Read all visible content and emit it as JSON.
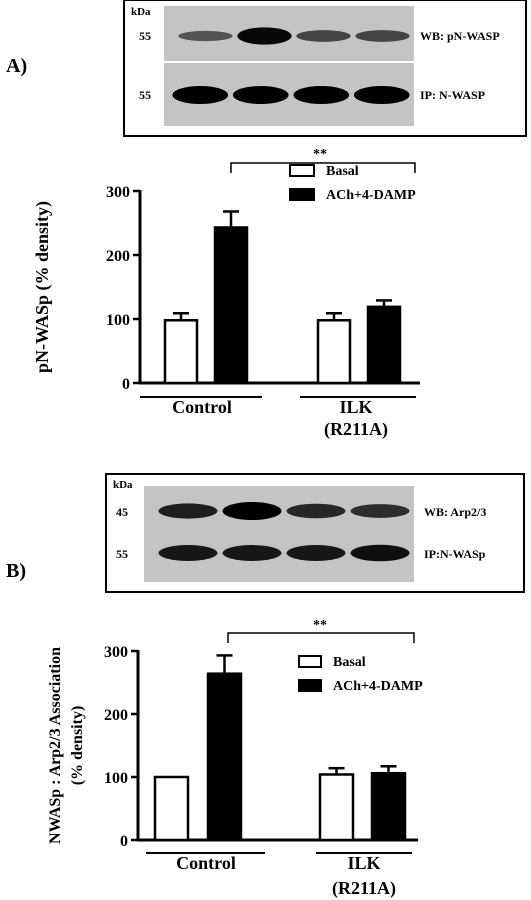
{
  "panels": [
    {
      "panel_label": "A)",
      "blot": {
        "unit_label": "kDa",
        "rows": [
          {
            "mw": "55",
            "label": "WB: pN-WASP",
            "intensities": [
              0.45,
              0.95,
              0.55,
              0.55
            ]
          },
          {
            "mw": "55",
            "label": "IP: N-WASP",
            "intensities": [
              1.0,
              1.0,
              1.0,
              1.0
            ]
          }
        ]
      },
      "significance": "**"
    },
    {
      "panel_label": "B)",
      "blot": {
        "unit_label": "kDa",
        "rows": [
          {
            "mw": "45",
            "label": "WB: Arp2/3",
            "intensities": [
              0.8,
              1.0,
              0.75,
              0.7
            ]
          },
          {
            "mw": "55",
            "label": "IP:N-WASp",
            "intensities": [
              0.85,
              0.85,
              0.85,
              0.9
            ]
          }
        ]
      },
      "significance": "**"
    }
  ],
  "chart_data": [
    {
      "type": "bar",
      "title": "",
      "ylabel": "pN-WASp  (% density)",
      "ylim": [
        0,
        300
      ],
      "yticks": [
        0,
        100,
        200,
        300
      ],
      "groups": [
        "Control",
        "ILK (R211A)"
      ],
      "group_label_lines": [
        [
          "Control"
        ],
        [
          "ILK",
          "(R211A)"
        ]
      ],
      "series": [
        {
          "name": "Basal",
          "color": "#ffffff",
          "values": [
            98,
            98
          ],
          "errors": [
            11,
            11
          ]
        },
        {
          "name": "ACh+4-DAMP",
          "color": "#000000",
          "values": [
            243,
            119
          ],
          "errors": [
            25,
            10
          ]
        }
      ],
      "grid": false,
      "legend": "top-right"
    },
    {
      "type": "bar",
      "title": "",
      "ylabel_lines": [
        "NWASp : Arp2/3 Association",
        "(% density)"
      ],
      "ylim": [
        0,
        300
      ],
      "yticks": [
        0,
        100,
        200,
        300
      ],
      "groups": [
        "Control",
        "ILK (R211A)"
      ],
      "group_label_lines": [
        [
          "Control"
        ],
        [
          "ILK",
          "(R211A)"
        ]
      ],
      "series": [
        {
          "name": "Basal",
          "color": "#ffffff",
          "values": [
            100,
            104
          ],
          "errors": [
            0,
            10
          ]
        },
        {
          "name": "ACh+4-DAMP",
          "color": "#000000",
          "values": [
            264,
            106
          ],
          "errors": [
            29,
            11
          ]
        }
      ],
      "grid": false,
      "legend": "top-right"
    }
  ]
}
